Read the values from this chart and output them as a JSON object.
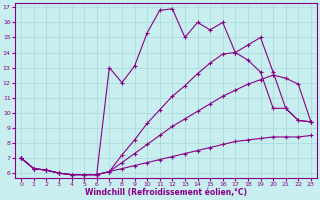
{
  "xlabel": "Windchill (Refroidissement éolien,°C)",
  "background_color": "#c8eef0",
  "line_color": "#880088",
  "xlim": [
    -0.5,
    23.5
  ],
  "ylim": [
    5.7,
    17.3
  ],
  "xticks": [
    0,
    1,
    2,
    3,
    4,
    5,
    6,
    7,
    8,
    9,
    10,
    11,
    12,
    13,
    14,
    15,
    16,
    17,
    18,
    19,
    20,
    21,
    22,
    23
  ],
  "yticks": [
    6,
    7,
    8,
    9,
    10,
    11,
    12,
    13,
    14,
    15,
    16,
    17
  ],
  "grid_color": "#a8d8da",
  "markersize": 3,
  "curve_top_x": [
    0,
    1,
    2,
    3,
    4,
    5,
    6,
    7,
    8,
    9,
    10,
    11,
    12,
    13,
    14,
    15,
    16,
    17,
    18,
    19,
    20,
    21,
    22,
    23
  ],
  "curve_top_y": [
    7.0,
    6.3,
    6.2,
    6.0,
    5.9,
    5.9,
    5.9,
    13.0,
    12.0,
    13.1,
    15.3,
    16.8,
    16.9,
    15.0,
    16.0,
    15.5,
    16.0,
    14.0,
    13.5,
    12.7,
    10.3,
    10.3,
    9.5,
    9.4
  ],
  "curve_mid1_x": [
    0,
    1,
    2,
    3,
    4,
    5,
    6,
    7,
    8,
    9,
    10,
    11,
    12,
    13,
    14,
    15,
    16,
    17,
    18,
    19,
    20,
    21,
    22,
    23
  ],
  "curve_mid1_y": [
    7.0,
    6.3,
    6.2,
    6.0,
    5.9,
    5.9,
    5.9,
    6.1,
    7.2,
    8.2,
    9.3,
    10.2,
    11.1,
    11.8,
    12.6,
    13.3,
    13.9,
    14.0,
    14.5,
    15.0,
    12.7,
    10.3,
    9.5,
    9.4
  ],
  "curve_mid2_x": [
    0,
    1,
    2,
    3,
    4,
    5,
    6,
    7,
    8,
    9,
    10,
    11,
    12,
    13,
    14,
    15,
    16,
    17,
    18,
    19,
    20,
    21,
    22,
    23
  ],
  "curve_mid2_y": [
    7.0,
    6.3,
    6.2,
    6.0,
    5.9,
    5.9,
    5.9,
    6.1,
    6.7,
    7.3,
    7.9,
    8.5,
    9.1,
    9.6,
    10.1,
    10.6,
    11.1,
    11.5,
    11.9,
    12.2,
    12.5,
    12.3,
    11.9,
    9.4
  ],
  "curve_bot_x": [
    0,
    1,
    2,
    3,
    4,
    5,
    6,
    7,
    8,
    9,
    10,
    11,
    12,
    13,
    14,
    15,
    16,
    17,
    18,
    19,
    20,
    21,
    22,
    23
  ],
  "curve_bot_y": [
    7.0,
    6.3,
    6.2,
    6.0,
    5.9,
    5.9,
    5.9,
    6.1,
    6.3,
    6.5,
    6.7,
    6.9,
    7.1,
    7.3,
    7.5,
    7.7,
    7.9,
    8.1,
    8.2,
    8.3,
    8.4,
    8.4,
    8.4,
    8.5
  ]
}
